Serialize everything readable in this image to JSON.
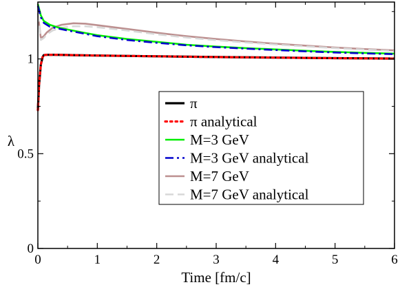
{
  "chart_data": {
    "type": "line",
    "title": "",
    "xlabel": "Time [fm/c]",
    "ylabel": "λ",
    "xlim": [
      0,
      6
    ],
    "ylim": [
      0,
      1.3
    ],
    "xticks": [
      0,
      1,
      2,
      3,
      4,
      5,
      6
    ],
    "xtick_labels": [
      "0",
      "1",
      "2",
      "3",
      "4",
      "5",
      "6"
    ],
    "yticks": [
      0,
      0.5,
      1
    ],
    "ytick_labels": [
      "0",
      "0.5",
      "1"
    ],
    "grid": false,
    "legend_position": "center-right",
    "series": [
      {
        "name": "π",
        "color": "#000000",
        "dash": "solid",
        "x": [
          0.0,
          0.02,
          0.05,
          0.08,
          0.1,
          0.15,
          0.3,
          0.6,
          1.0,
          2.0,
          3.0,
          4.0,
          5.0,
          6.0
        ],
        "y": [
          0.73,
          0.86,
          0.97,
          1.01,
          1.02,
          1.022,
          1.022,
          1.02,
          1.018,
          1.014,
          1.01,
          1.007,
          1.004,
          1.002
        ]
      },
      {
        "name": "π analytical",
        "color": "#ff0000",
        "dash": "dotted",
        "x": [
          0.0,
          0.02,
          0.05,
          0.08,
          0.1,
          0.15,
          0.3,
          0.6,
          1.0,
          2.0,
          3.0,
          4.0,
          5.0,
          6.0
        ],
        "y": [
          0.73,
          0.86,
          0.97,
          1.01,
          1.02,
          1.022,
          1.022,
          1.02,
          1.018,
          1.014,
          1.01,
          1.007,
          1.004,
          1.002
        ]
      },
      {
        "name": "M=3 GeV",
        "color": "#00ee00",
        "dash": "solid",
        "x": [
          0.0,
          0.05,
          0.1,
          0.2,
          0.35,
          0.5,
          0.75,
          1.0,
          1.5,
          2.0,
          2.5,
          3.0,
          3.5,
          4.0,
          4.5,
          5.0,
          5.5,
          6.0
        ],
        "y": [
          1.29,
          1.23,
          1.2,
          1.18,
          1.165,
          1.155,
          1.14,
          1.125,
          1.105,
          1.09,
          1.075,
          1.065,
          1.057,
          1.05,
          1.043,
          1.037,
          1.032,
          1.028
        ]
      },
      {
        "name": "M=3 GeV analytical",
        "color": "#0000cc",
        "dash": "dashdot",
        "x": [
          0.0,
          0.05,
          0.1,
          0.2,
          0.35,
          0.5,
          0.75,
          1.0,
          1.5,
          2.0,
          2.5,
          3.0,
          3.5,
          4.0,
          4.5,
          5.0,
          5.5,
          6.0
        ],
        "y": [
          1.28,
          1.22,
          1.19,
          1.17,
          1.16,
          1.15,
          1.135,
          1.12,
          1.1,
          1.085,
          1.072,
          1.062,
          1.054,
          1.047,
          1.04,
          1.034,
          1.029,
          1.025
        ]
      },
      {
        "name": "M=7 GeV",
        "color": "#bc8f8f",
        "dash": "solid",
        "x": [
          0.0,
          0.05,
          0.1,
          0.15,
          0.25,
          0.4,
          0.6,
          0.8,
          1.0,
          1.5,
          2.0,
          2.5,
          3.0,
          3.5,
          4.0,
          4.5,
          5.0,
          5.5,
          6.0
        ],
        "y": [
          1.24,
          1.11,
          1.12,
          1.14,
          1.165,
          1.18,
          1.188,
          1.186,
          1.178,
          1.158,
          1.138,
          1.12,
          1.105,
          1.092,
          1.08,
          1.07,
          1.06,
          1.052,
          1.045
        ]
      },
      {
        "name": "M=7 GeV analytical",
        "color": "#d8d8d8",
        "dash": "dashed",
        "x": [
          0.0,
          0.05,
          0.1,
          0.15,
          0.25,
          0.4,
          0.6,
          0.8,
          1.0,
          1.5,
          2.0,
          2.5,
          3.0,
          3.5,
          4.0,
          4.5,
          5.0,
          5.5,
          6.0
        ],
        "y": [
          1.24,
          1.1,
          1.11,
          1.13,
          1.15,
          1.165,
          1.172,
          1.172,
          1.167,
          1.15,
          1.13,
          1.113,
          1.099,
          1.087,
          1.076,
          1.066,
          1.057,
          1.049,
          1.042
        ]
      }
    ]
  }
}
